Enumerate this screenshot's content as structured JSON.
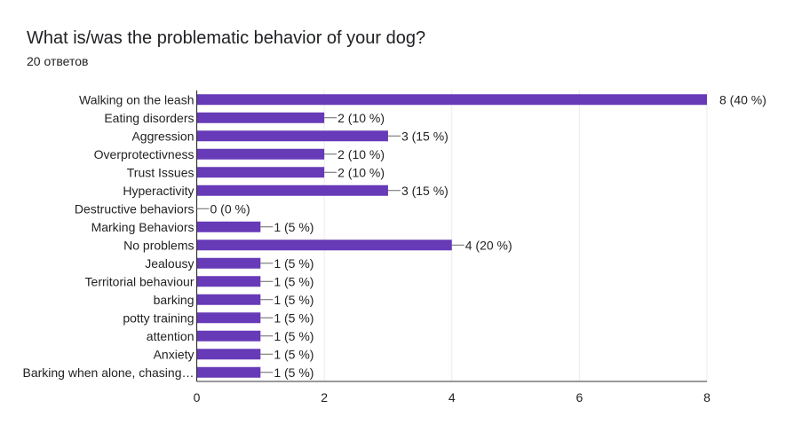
{
  "title": "What is/was the problematic behavior of your dog?",
  "subtitle": "20 ответов",
  "colors": {
    "bar": "#673ab7",
    "grid": "#ebebeb",
    "axis": "#333333",
    "text": "#222222",
    "label_line": "#666666"
  },
  "chart_data": {
    "type": "bar",
    "orientation": "horizontal",
    "categories": [
      "Walking on the leash",
      "Eating disorders",
      "Aggression",
      "Overprotectivness",
      "Trust Issues",
      "Hyperactivity",
      "Destructive behaviors",
      "Marking Behaviors",
      "No problems",
      "Jealousy",
      "Territorial behaviour",
      "barking",
      "potty training",
      "attention",
      "Anxiety",
      "Barking when alone, chasing…"
    ],
    "values": [
      8,
      2,
      3,
      2,
      2,
      3,
      0,
      1,
      4,
      1,
      1,
      1,
      1,
      1,
      1,
      1
    ],
    "data_labels": [
      "8 (40 %)",
      "2 (10 %)",
      "3 (15 %)",
      "2 (10 %)",
      "2 (10 %)",
      "3 (15 %)",
      "0 (0 %)",
      "1 (5 %)",
      "4 (20 %)",
      "1 (5 %)",
      "1 (5 %)",
      "1 (5 %)",
      "1 (5 %)",
      "1 (5 %)",
      "1 (5 %)",
      "1 (5 %)"
    ],
    "xlim": [
      0,
      8
    ],
    "xticks": [
      0,
      2,
      4,
      6,
      8
    ],
    "grid": true,
    "legend": "none"
  }
}
